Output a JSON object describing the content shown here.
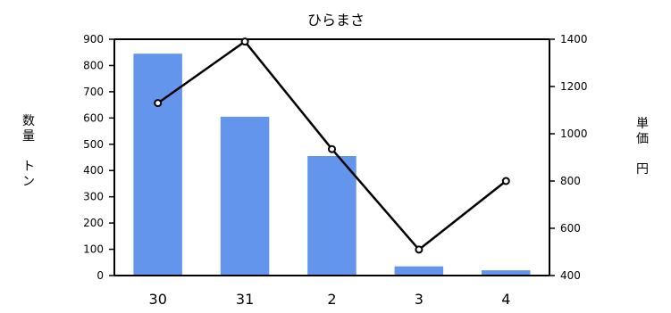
{
  "chart_data": {
    "type": "bar",
    "title": "ひらまさ",
    "categories": [
      "30",
      "31",
      "2",
      "3",
      "4"
    ],
    "series": [
      {
        "type": "bar",
        "axis": "left",
        "values": [
          845,
          605,
          455,
          35,
          20
        ],
        "color": "#6495ED"
      },
      {
        "type": "line",
        "axis": "right",
        "values": [
          1130,
          1390,
          935,
          510,
          800
        ],
        "color": "#000000"
      }
    ],
    "y_left": {
      "label_lines": [
        "数",
        "量",
        "",
        "ト",
        "ン"
      ],
      "range": [
        0,
        900
      ],
      "ticks": [
        0,
        100,
        200,
        300,
        400,
        500,
        600,
        700,
        800,
        900
      ]
    },
    "y_right": {
      "label_lines": [
        "単",
        "価",
        "",
        "円"
      ],
      "range": [
        400,
        1400
      ],
      "ticks": [
        400,
        600,
        800,
        1000,
        1200,
        1400
      ]
    },
    "grid": false,
    "legend": "none"
  }
}
